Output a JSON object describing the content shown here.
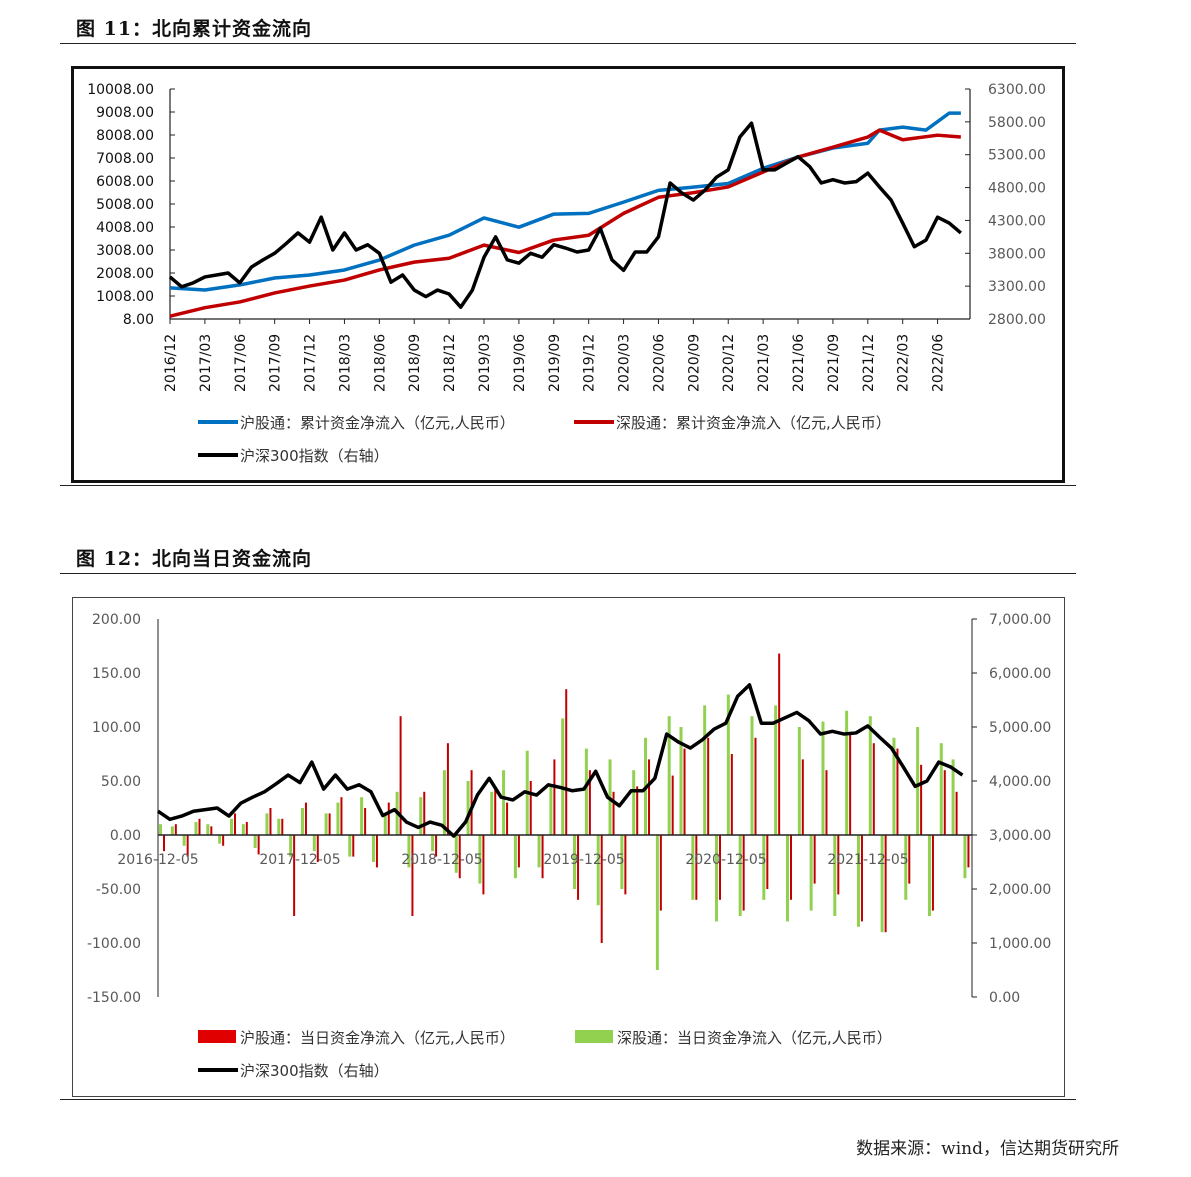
{
  "figure11": {
    "title": "图 11：北向累计资金流向",
    "chart_data": {
      "type": "line",
      "title": "北向累计资金流向",
      "x_ticks": [
        "2016/12",
        "2017/03",
        "2017/06",
        "2017/09",
        "2017/12",
        "2018/03",
        "2018/06",
        "2018/09",
        "2018/12",
        "2019/03",
        "2019/06",
        "2019/09",
        "2019/12",
        "2020/03",
        "2020/06",
        "2020/09",
        "2020/12",
        "2021/03",
        "2021/06",
        "2021/09",
        "2021/12",
        "2022/03",
        "2022/06"
      ],
      "x_range": [
        "2016/12",
        "2022/08"
      ],
      "y_left": {
        "min": 8,
        "max": 10008,
        "ticks": [
          "10008.00",
          "9008.00",
          "8008.00",
          "7008.00",
          "6008.00",
          "5008.00",
          "4008.00",
          "3008.00",
          "2008.00",
          "1008.00",
          "8.00"
        ]
      },
      "y_right": {
        "min": 2800,
        "max": 6300,
        "ticks": [
          "6300.00",
          "5800.00",
          "5300.00",
          "4800.00",
          "4300.00",
          "3800.00",
          "3300.00",
          "2800.00"
        ]
      },
      "series": [
        {
          "name": "沪股通：累计资金净流入（亿元,人民币）",
          "axis": "left",
          "color": "#0070c0",
          "x": [
            "2016/12",
            "2017/03",
            "2017/06",
            "2017/09",
            "2017/12",
            "2018/03",
            "2018/06",
            "2018/09",
            "2018/12",
            "2019/03",
            "2019/06",
            "2019/09",
            "2019/12",
            "2020/03",
            "2020/06",
            "2020/09",
            "2020/12",
            "2021/03",
            "2021/06",
            "2021/09",
            "2021/12",
            "2022/01",
            "2022/03",
            "2022/05",
            "2022/07",
            "2022/08"
          ],
          "values": [
            1360,
            1270,
            1490,
            1790,
            1920,
            2140,
            2570,
            3220,
            3650,
            4400,
            4000,
            4570,
            4600,
            5090,
            5600,
            5740,
            5900,
            6560,
            7050,
            7440,
            7650,
            8220,
            8350,
            8220,
            8960,
            8960
          ]
        },
        {
          "name": "深股通：累计资金净流入（亿元,人民币）",
          "axis": "left",
          "color": "#c00000",
          "x": [
            "2016/12",
            "2017/03",
            "2017/06",
            "2017/09",
            "2017/12",
            "2018/03",
            "2018/06",
            "2018/09",
            "2018/12",
            "2019/03",
            "2019/06",
            "2019/09",
            "2019/12",
            "2020/03",
            "2020/06",
            "2020/09",
            "2020/12",
            "2021/03",
            "2021/06",
            "2021/09",
            "2021/12",
            "2022/01",
            "2022/03",
            "2022/06",
            "2022/08"
          ],
          "values": [
            130,
            500,
            750,
            1140,
            1440,
            1700,
            2140,
            2480,
            2650,
            3220,
            2900,
            3440,
            3650,
            4600,
            5300,
            5500,
            5750,
            6400,
            7050,
            7480,
            7920,
            8220,
            7800,
            8000,
            7920
          ]
        },
        {
          "name": "沪深300指数（右轴）",
          "axis": "right",
          "color": "#000000",
          "start": "2016/12",
          "values": [
            3440,
            3290,
            3350,
            3440,
            3470,
            3500,
            3350,
            3590,
            3700,
            3800,
            3950,
            4110,
            3970,
            4350,
            3850,
            4110,
            3850,
            3930,
            3800,
            3360,
            3470,
            3240,
            3140,
            3240,
            3180,
            2980,
            3240,
            3740,
            4050,
            3700,
            3650,
            3800,
            3740,
            3930,
            3880,
            3820,
            3850,
            4180,
            3700,
            3540,
            3820,
            3820,
            4050,
            4870,
            4720,
            4610,
            4760,
            4960,
            5070,
            5570,
            5780,
            5070,
            5070,
            5170,
            5270,
            5120,
            4870,
            4920,
            4870,
            4890,
            5020,
            4810,
            4610,
            4260,
            3900,
            4000,
            4350,
            4260,
            4110
          ]
        }
      ]
    }
  },
  "figure12": {
    "title": "图 12：北向当日资金流向",
    "chart_data": {
      "type": "bar",
      "title": "北向当日资金流向",
      "x_ticks": [
        "2016-12-05",
        "2017-12-05",
        "2018-12-05",
        "2019-12-05",
        "2020-12-05",
        "2021-12-05"
      ],
      "start": "2016/12",
      "y_left": {
        "min": -150,
        "max": 200,
        "ticks": [
          "200.00",
          "150.00",
          "100.00",
          "50.00",
          "0.00",
          "-50.00",
          "-100.00",
          "-150.00"
        ]
      },
      "y_right": {
        "min": 0,
        "max": 7000,
        "ticks": [
          "7,000.00",
          "6,000.00",
          "5,000.00",
          "4,000.00",
          "3,000.00",
          "2,000.00",
          "1,000.00",
          "0.00"
        ]
      },
      "series": [
        {
          "name": "沪股通：当日资金净流入（亿元,人民币）",
          "kind": "bar",
          "color": "#e00000",
          "values": [
            -15,
            10,
            -20,
            15,
            8,
            -10,
            20,
            12,
            -18,
            25,
            15,
            -75,
            30,
            -25,
            20,
            35,
            -20,
            25,
            -30,
            30,
            110,
            -75,
            40,
            -20,
            85,
            -40,
            60,
            -55,
            45,
            30,
            -30,
            50,
            -40,
            70,
            135,
            -60,
            60,
            -100,
            40,
            -55,
            45,
            70,
            -70,
            55,
            80,
            -60,
            90,
            -60,
            75,
            -70,
            90,
            -50,
            168,
            -60,
            70,
            -45,
            60,
            -55,
            95,
            -80,
            85,
            -90,
            80,
            -45,
            65,
            -70,
            60,
            40,
            -30
          ]
        },
        {
          "name": "深股通：当日资金净流入（亿元,人民币）",
          "kind": "bar",
          "color": "#92d050",
          "values": [
            10,
            8,
            -10,
            12,
            10,
            -8,
            15,
            10,
            -12,
            20,
            15,
            -20,
            25,
            -15,
            20,
            30,
            -20,
            35,
            -25,
            20,
            40,
            -30,
            35,
            -15,
            60,
            -35,
            50,
            -45,
            40,
            60,
            -40,
            78,
            -30,
            45,
            108,
            -50,
            80,
            -65,
            70,
            -50,
            60,
            90,
            -125,
            110,
            100,
            -60,
            120,
            -80,
            130,
            -75,
            110,
            -60,
            120,
            -80,
            100,
            -70,
            105,
            -75,
            115,
            -85,
            110,
            -90,
            90,
            -60,
            100,
            -75,
            85,
            70,
            -40
          ]
        },
        {
          "name": "沪深300指数（右轴）",
          "kind": "line",
          "axis": "right",
          "color": "#000000",
          "values": [
            3440,
            3290,
            3350,
            3440,
            3470,
            3500,
            3350,
            3590,
            3700,
            3800,
            3950,
            4110,
            3970,
            4350,
            3850,
            4110,
            3850,
            3930,
            3800,
            3360,
            3470,
            3240,
            3140,
            3240,
            3180,
            2980,
            3240,
            3740,
            4050,
            3700,
            3650,
            3800,
            3740,
            3930,
            3880,
            3820,
            3850,
            4180,
            3700,
            3540,
            3820,
            3820,
            4050,
            4870,
            4720,
            4610,
            4760,
            4960,
            5070,
            5570,
            5780,
            5070,
            5070,
            5170,
            5270,
            5120,
            4870,
            4920,
            4870,
            4890,
            5020,
            4810,
            4610,
            4260,
            3900,
            4000,
            4350,
            4260,
            4110
          ]
        }
      ]
    }
  },
  "source": "数据来源：wind，信达期货研究所"
}
